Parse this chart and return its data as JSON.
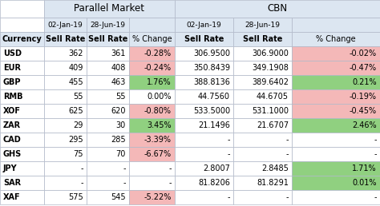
{
  "title_parallel": "Parallel Market",
  "title_cbn": "CBN",
  "currencies": [
    "USD",
    "EUR",
    "GBP",
    "RMB",
    "XOF",
    "ZAR",
    "CAD",
    "GHS",
    "JPY",
    "SAR",
    "XAF"
  ],
  "parallel_jan": [
    "362",
    "409",
    "455",
    "55",
    "625",
    "29",
    "295",
    "75",
    "-",
    "-",
    "575"
  ],
  "parallel_jun": [
    "361",
    "408",
    "463",
    "55",
    "620",
    "30",
    "285",
    "70",
    "-",
    "-",
    "545"
  ],
  "parallel_chg": [
    "-0.28%",
    "-0.24%",
    "1.76%",
    "0.00%",
    "-0.80%",
    "3.45%",
    "-3.39%",
    "-6.67%",
    "-",
    "-",
    "-5.22%"
  ],
  "cbn_jan": [
    "306.9500",
    "350.8439",
    "388.8136",
    "44.7560",
    "533.5000",
    "21.1496",
    "-",
    "-",
    "2.8007",
    "81.8206",
    "-"
  ],
  "cbn_jun": [
    "306.9000",
    "349.1908",
    "389.6402",
    "44.6705",
    "531.1000",
    "21.6707",
    "-",
    "-",
    "2.8485",
    "81.8291",
    "-"
  ],
  "cbn_chg": [
    "-0.02%",
    "-0.47%",
    "0.21%",
    "-0.19%",
    "-0.45%",
    "2.46%",
    "-",
    "-",
    "1.71%",
    "0.01%",
    "-"
  ],
  "parallel_chg_colors": [
    "#f4b8b8",
    "#f4b8b8",
    "#90d080",
    "#ffffff",
    "#f4b8b8",
    "#90d080",
    "#f4b8b8",
    "#f4b8b8",
    "#ffffff",
    "#ffffff",
    "#f4b8b8"
  ],
  "cbn_chg_colors": [
    "#f4b8b8",
    "#f4b8b8",
    "#90d080",
    "#f4b8b8",
    "#f4b8b8",
    "#90d080",
    "#ffffff",
    "#ffffff",
    "#90d080",
    "#90d080",
    "#ffffff"
  ],
  "header_bg": "#dce6f1",
  "border_color": "#b0b8c8",
  "fig_w": 4.74,
  "fig_h": 2.58,
  "dpi": 100
}
